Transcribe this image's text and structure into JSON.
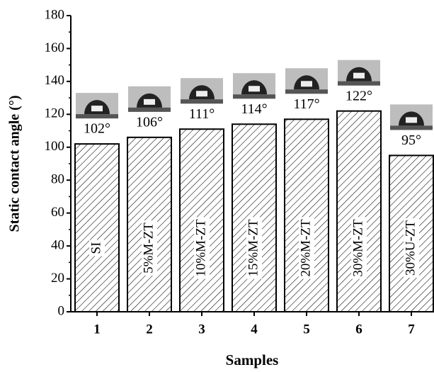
{
  "chart_data": {
    "type": "bar",
    "xlabel": "Samples",
    "ylabel": "Static contact angle (°)",
    "categories": [
      "1",
      "2",
      "3",
      "4",
      "5",
      "6",
      "7"
    ],
    "values": [
      102,
      106,
      111,
      114,
      117,
      122,
      95
    ],
    "value_labels": [
      "102°",
      "106°",
      "111°",
      "114°",
      "117°",
      "122°",
      "95°"
    ],
    "bar_labels": [
      "SI",
      "5%M-ZT",
      "10%M-ZT",
      "15%M-ZT",
      "20%M-ZT",
      "30%M-ZT",
      "30%U-ZT"
    ],
    "color": "#000000",
    "ylim": [
      0,
      180
    ],
    "yticks": [
      0,
      20,
      40,
      60,
      80,
      100,
      120,
      140,
      160,
      180
    ]
  }
}
